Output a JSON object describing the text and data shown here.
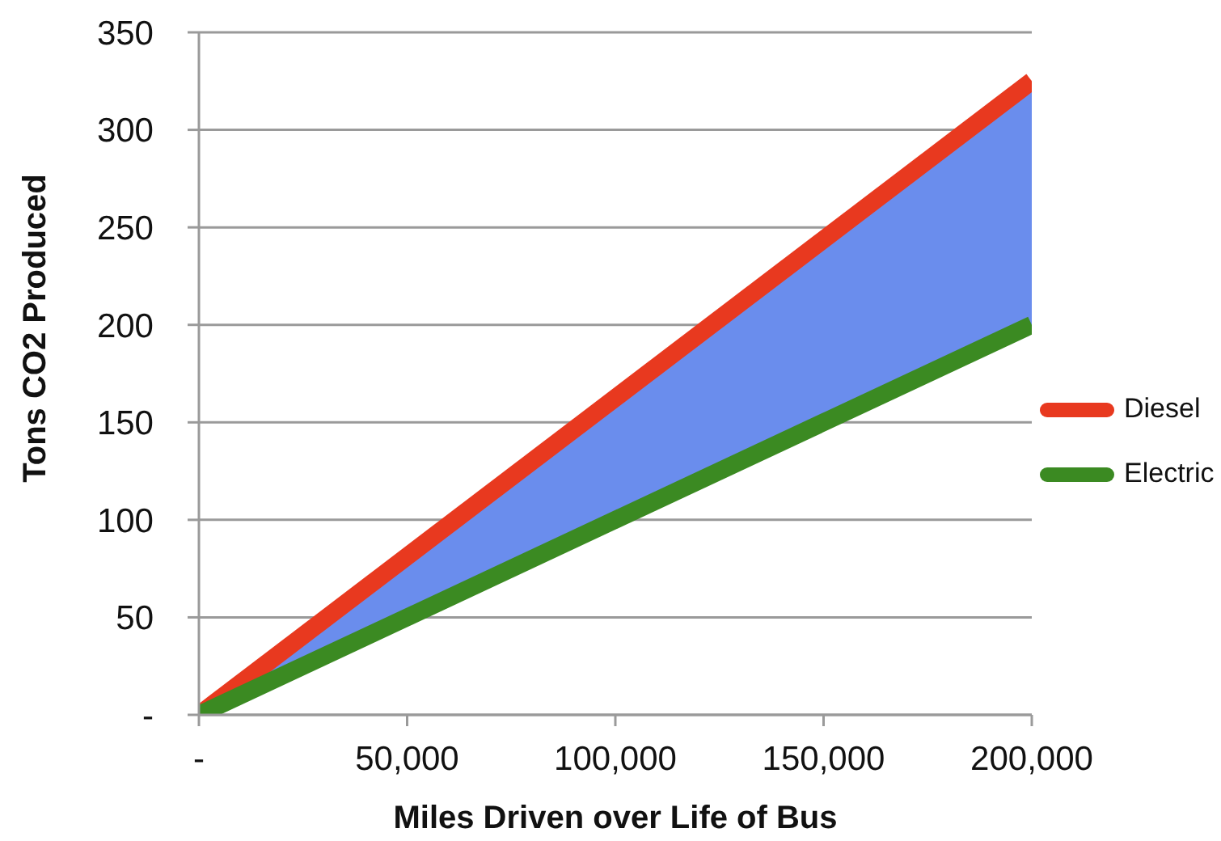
{
  "chart_data": {
    "type": "line",
    "xlabel": "Miles Driven over Life of Bus",
    "ylabel": "Tons CO2 Produced",
    "x": [
      0,
      200000
    ],
    "series": [
      {
        "name": "Diesel",
        "color": "#e8391f",
        "values": [
          0,
          325
        ]
      },
      {
        "name": "Electric",
        "color": "#3b8a22",
        "values": [
          0,
          200
        ]
      },
      {
        "type": "area",
        "color": "#6a8ded",
        "values": [
          null,
          null
        ],
        "lower": [
          0,
          200
        ],
        "upper": [
          0,
          325
        ]
      }
    ],
    "xlim": [
      0,
      200000
    ],
    "xticks": [
      {
        "value": 0,
        "label": "-"
      },
      {
        "value": 50000,
        "label": "50,000"
      },
      {
        "value": 100000,
        "label": "100,000"
      },
      {
        "value": 150000,
        "label": "150,000"
      },
      {
        "value": 200000,
        "label": "200,000"
      }
    ],
    "ylim": [
      0,
      350
    ],
    "yticks": [
      {
        "value": 0,
        "label": "-"
      },
      50,
      100,
      150,
      200,
      250,
      300,
      350
    ],
    "grid": "y",
    "legend": "right",
    "marker": "none",
    "line_style": "solid"
  }
}
